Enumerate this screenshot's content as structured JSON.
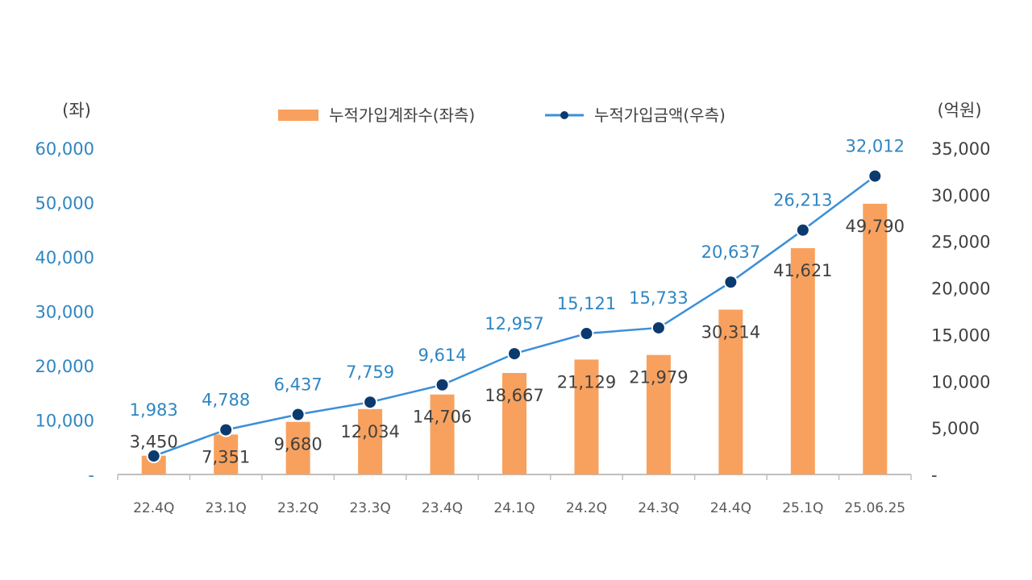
{
  "chart_data": {
    "type": "bar+line",
    "categories": [
      "22.4Q",
      "23.1Q",
      "23.2Q",
      "23.3Q",
      "23.4Q",
      "24.1Q",
      "24.2Q",
      "24.3Q",
      "24.4Q",
      "25.1Q",
      "25.06.25"
    ],
    "series": [
      {
        "name": "누적가입계좌수(좌측)",
        "type": "bar",
        "axis": "left",
        "color": "#f8a15e",
        "values": [
          3450,
          7351,
          9680,
          12034,
          14706,
          18667,
          21129,
          21979,
          30314,
          41621,
          49790
        ],
        "labels": [
          "3,450",
          "7,351",
          "9,680",
          "12,034",
          "14,706",
          "18,667",
          "21,129",
          "21,979",
          "30,314",
          "41,621",
          "49,790"
        ]
      },
      {
        "name": "누적가입금액(우측)",
        "type": "line",
        "axis": "right",
        "color": "#3b8fd9",
        "marker_color": "#0b3a6e",
        "values": [
          1983,
          4788,
          6437,
          7759,
          9614,
          12957,
          15121,
          15733,
          20637,
          26213,
          32012
        ],
        "labels": [
          "1,983",
          "4,788",
          "6,437",
          "7,759",
          "9,614",
          "12,957",
          "15,121",
          "15,733",
          "20,637",
          "26,213",
          "32,012"
        ]
      }
    ],
    "left_axis": {
      "unit": "(좌)",
      "ylim": [
        0,
        60000
      ],
      "ticks": [
        "-",
        "10,000",
        "20,000",
        "30,000",
        "40,000",
        "50,000",
        "60,000"
      ]
    },
    "right_axis": {
      "unit": "(억원)",
      "ylim": [
        0,
        35000
      ],
      "ticks": [
        "-",
        "5,000",
        "10,000",
        "15,000",
        "20,000",
        "25,000",
        "30,000",
        "35,000"
      ]
    },
    "legend_placement": "top-center",
    "grid": false
  }
}
